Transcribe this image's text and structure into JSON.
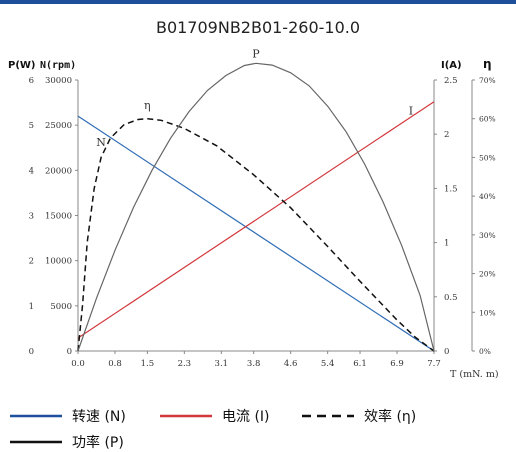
{
  "chart_data": {
    "type": "line",
    "title": "B01709NB2B01-260-10.0",
    "x": {
      "label": "T (mN. m)",
      "ticks": [
        "0.0",
        "0.8",
        "1.5",
        "2.3",
        "3.1",
        "3.8",
        "4.6",
        "5.4",
        "6.1",
        "6.9",
        "7.7"
      ],
      "range": [
        0,
        7.7
      ]
    },
    "axes": {
      "power": {
        "label": "P(W)",
        "ticks": [
          "0",
          "1",
          "2",
          "3",
          "4",
          "5",
          "6"
        ],
        "range": [
          0,
          6
        ]
      },
      "speed": {
        "label": "N(rpm)",
        "ticks": [
          "0",
          "5000",
          "10000",
          "15000",
          "20000",
          "25000",
          "30000"
        ],
        "range": [
          0,
          30000
        ]
      },
      "current": {
        "label": "I(A)",
        "ticks": [
          "0",
          "0.5",
          "1",
          "1.5",
          "2",
          "2.5"
        ],
        "range": [
          0,
          2.5
        ]
      },
      "efficiency": {
        "label": "η",
        "ticks": [
          "0%",
          "10%",
          "20%",
          "30%",
          "40%",
          "50%",
          "60%",
          "70%"
        ],
        "range": [
          0,
          70
        ]
      }
    },
    "series": [
      {
        "key": "N",
        "axis": "speed",
        "color": "#2f6db5",
        "dash": "",
        "curve_label": "N",
        "points": [
          [
            0,
            26000
          ],
          [
            7.7,
            0
          ]
        ]
      },
      {
        "key": "I",
        "axis": "current",
        "color": "#d2373b",
        "dash": "",
        "curve_label": "I",
        "points": [
          [
            0,
            0.12
          ],
          [
            7.7,
            2.3
          ]
        ]
      },
      {
        "key": "eta",
        "axis": "efficiency",
        "color": "#111111",
        "dash": "6,4",
        "curve_label": "η",
        "points": [
          [
            0,
            0
          ],
          [
            0.1,
            12
          ],
          [
            0.2,
            28
          ],
          [
            0.35,
            42
          ],
          [
            0.5,
            50
          ],
          [
            0.7,
            55
          ],
          [
            1.0,
            58.5
          ],
          [
            1.3,
            59.8
          ],
          [
            1.5,
            60
          ],
          [
            1.8,
            59.6
          ],
          [
            2.3,
            57.5
          ],
          [
            3.0,
            53
          ],
          [
            3.8,
            45.5
          ],
          [
            4.6,
            37
          ],
          [
            5.4,
            27
          ],
          [
            6.1,
            18
          ],
          [
            6.9,
            8
          ],
          [
            7.3,
            3.5
          ],
          [
            7.7,
            0
          ]
        ]
      },
      {
        "key": "P",
        "axis": "power",
        "color": "#666666",
        "dash": "",
        "curve_label": "P",
        "points": [
          [
            0,
            0
          ],
          [
            0.4,
            1.17
          ],
          [
            0.8,
            2.23
          ],
          [
            1.2,
            3.18
          ],
          [
            1.6,
            4.0
          ],
          [
            2.0,
            4.71
          ],
          [
            2.4,
            5.3
          ],
          [
            2.8,
            5.77
          ],
          [
            3.2,
            6.1
          ],
          [
            3.6,
            6.32
          ],
          [
            3.85,
            6.37
          ],
          [
            4.2,
            6.33
          ],
          [
            4.6,
            6.16
          ],
          [
            5.0,
            5.87
          ],
          [
            5.4,
            5.42
          ],
          [
            5.8,
            4.85
          ],
          [
            6.2,
            4.14
          ],
          [
            6.6,
            3.3
          ],
          [
            7.0,
            2.34
          ],
          [
            7.4,
            1.23
          ],
          [
            7.7,
            0
          ]
        ]
      }
    ],
    "legend": [
      {
        "label": "转速 (N)",
        "color": "#1d4f9a",
        "dash": ""
      },
      {
        "label": "电流 (I)",
        "color": "#d2373b",
        "dash": ""
      },
      {
        "label": "效率 (η)",
        "color": "#111111",
        "dash": "9,6"
      },
      {
        "label": "功率 (P)",
        "color": "#111111",
        "dash": ""
      }
    ],
    "legend_position": "bottom",
    "grid": false
  }
}
